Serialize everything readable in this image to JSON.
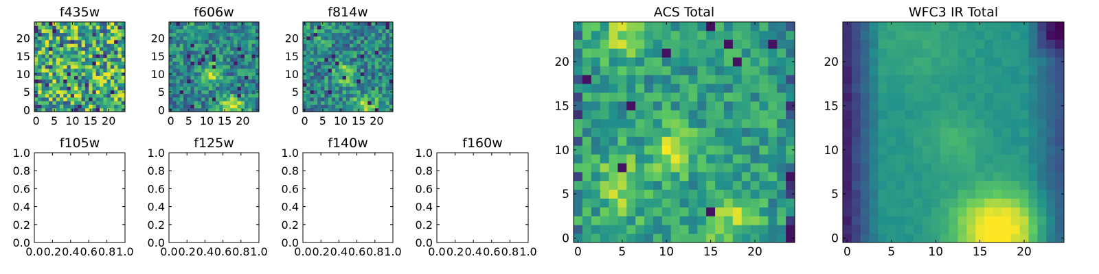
{
  "figure": {
    "colormap_colors": [
      "#440154",
      "#3b528b",
      "#21918c",
      "#5ec962",
      "#fde725"
    ]
  },
  "chart_data": [
    {
      "id": "f435w",
      "type": "heatmap",
      "title": "f435w",
      "has_image": true,
      "seed": 11,
      "pattern": "noise",
      "xticks": [
        0,
        5,
        10,
        15,
        20
      ],
      "yticks": [
        0,
        5,
        10,
        15,
        20
      ],
      "xlim": [
        -0.5,
        24.5
      ],
      "ylim": [
        -0.5,
        24.5
      ],
      "grid_size": 25
    },
    {
      "id": "f606w",
      "type": "heatmap",
      "title": "f606w",
      "has_image": true,
      "seed": 23,
      "pattern": "source",
      "xticks": [
        0,
        5,
        10,
        15,
        20
      ],
      "yticks": [
        0,
        5,
        10,
        15,
        20
      ],
      "xlim": [
        -0.5,
        24.5
      ],
      "ylim": [
        -0.5,
        24.5
      ],
      "grid_size": 25
    },
    {
      "id": "f814w",
      "type": "heatmap",
      "title": "f814w",
      "has_image": true,
      "seed": 37,
      "pattern": "source",
      "xticks": [
        0,
        5,
        10,
        15,
        20
      ],
      "yticks": [
        0,
        5,
        10,
        15,
        20
      ],
      "xlim": [
        -0.5,
        24.5
      ],
      "ylim": [
        -0.5,
        24.5
      ],
      "grid_size": 25
    },
    {
      "id": "f105w",
      "type": "heatmap",
      "title": "f105w",
      "has_image": false,
      "xticks": [
        "0.0",
        "0.2",
        "0.4",
        "0.6",
        "0.8",
        "1.0"
      ],
      "yticks": [
        "0.0",
        "0.2",
        "0.4",
        "0.6",
        "0.8",
        "1.0"
      ],
      "xlim": [
        0,
        1
      ],
      "ylim": [
        0,
        1
      ]
    },
    {
      "id": "f125w",
      "type": "heatmap",
      "title": "f125w",
      "has_image": false,
      "xticks": [
        "0.0",
        "0.2",
        "0.4",
        "0.6",
        "0.8",
        "1.0"
      ],
      "yticks": [
        "0.0",
        "0.2",
        "0.4",
        "0.6",
        "0.8",
        "1.0"
      ],
      "xlim": [
        0,
        1
      ],
      "ylim": [
        0,
        1
      ]
    },
    {
      "id": "f140w",
      "type": "heatmap",
      "title": "f140w",
      "has_image": false,
      "xticks": [
        "0.0",
        "0.2",
        "0.4",
        "0.6",
        "0.8",
        "1.0"
      ],
      "yticks": [
        "0.0",
        "0.2",
        "0.4",
        "0.6",
        "0.8",
        "1.0"
      ],
      "xlim": [
        0,
        1
      ],
      "ylim": [
        0,
        1
      ]
    },
    {
      "id": "f160w",
      "type": "heatmap",
      "title": "f160w",
      "has_image": false,
      "xticks": [
        "0.0",
        "0.2",
        "0.4",
        "0.6",
        "0.8",
        "1.0"
      ],
      "yticks": [
        "0.0",
        "0.2",
        "0.4",
        "0.6",
        "0.8",
        "1.0"
      ],
      "xlim": [
        0,
        1
      ],
      "ylim": [
        0,
        1
      ]
    },
    {
      "id": "acs-total",
      "type": "heatmap",
      "title": "ACS Total",
      "has_image": true,
      "seed": 51,
      "pattern": "acs",
      "xticks": [
        0,
        5,
        10,
        15,
        20
      ],
      "yticks": [
        0,
        5,
        10,
        15,
        20
      ],
      "xlim": [
        -0.5,
        24.5
      ],
      "ylim": [
        -0.5,
        24.5
      ],
      "grid_size": 25
    },
    {
      "id": "wfc3-ir-total",
      "type": "heatmap",
      "title": "WFC3 IR Total",
      "has_image": true,
      "seed": 67,
      "pattern": "smooth",
      "xticks": [
        0,
        5,
        10,
        15,
        20
      ],
      "yticks": [
        0,
        5,
        10,
        15,
        20
      ],
      "xlim": [
        -0.5,
        24.5
      ],
      "ylim": [
        -0.5,
        24.5
      ],
      "grid_size": 25
    }
  ]
}
